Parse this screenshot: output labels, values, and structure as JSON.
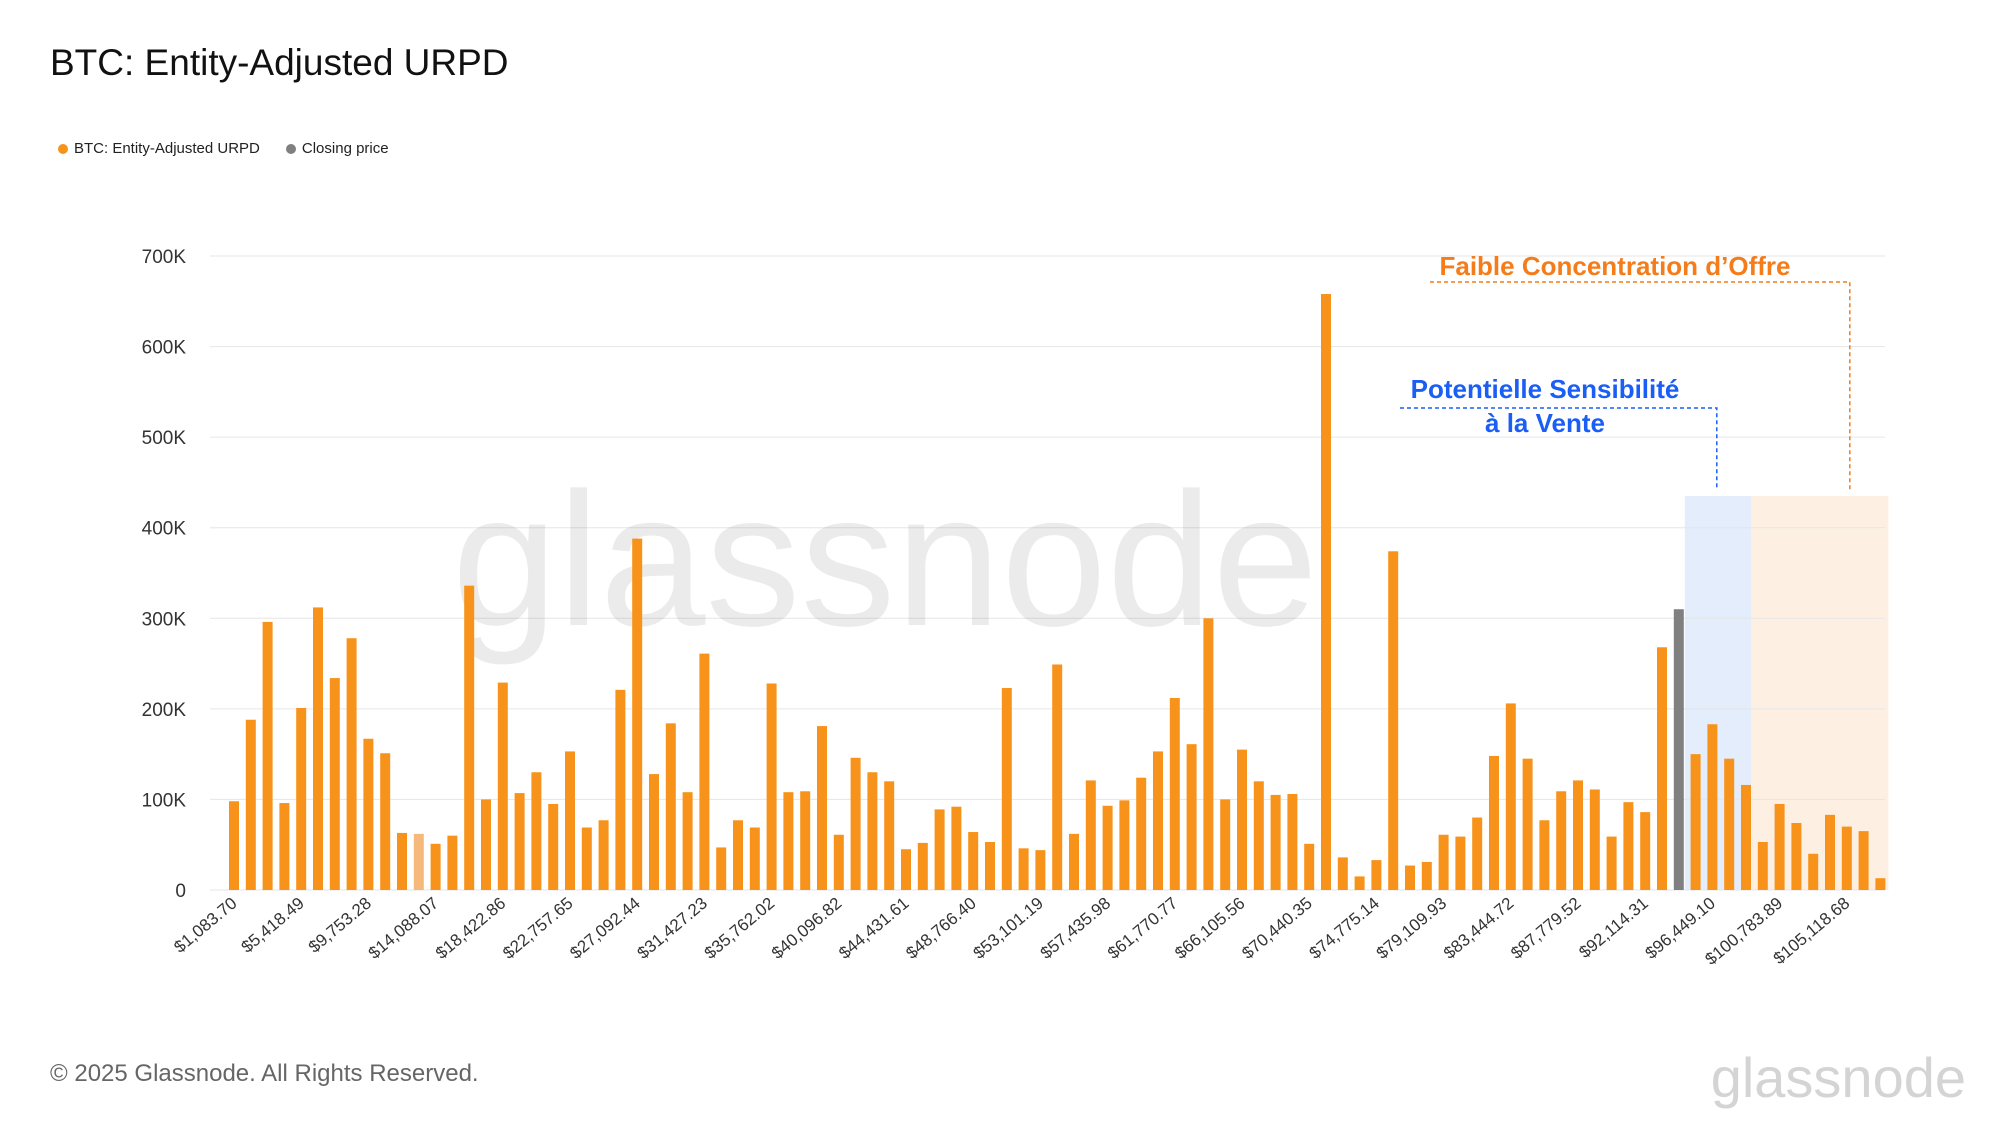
{
  "title": "BTC: Entity-Adjusted URPD",
  "legend": [
    {
      "label": "BTC: Entity-Adjusted URPD",
      "color": "#f7931a"
    },
    {
      "label": "Closing price",
      "color": "#808080"
    }
  ],
  "watermark": "glassnode",
  "footer": {
    "copyright": "© 2025 Glassnode. All Rights Reserved.",
    "logo": "glassnode"
  },
  "colors": {
    "bar": "#f7931a",
    "closing_bar": "#808080",
    "highlight_bar": "#f5b97c",
    "blue_band": "#e3edfb",
    "orange_band": "#fdf0e3",
    "blue_annotation": "#1a5ef5",
    "orange_annotation": "#f47c1a"
  },
  "chart_data": {
    "type": "bar",
    "yticks": [
      "0",
      "100K",
      "200K",
      "300K",
      "400K",
      "500K",
      "600K",
      "700K"
    ],
    "ylim": [
      0,
      700000
    ],
    "grid": true,
    "tick_labels": [
      "$1,083.70",
      "$5,418.49",
      "$9,753.28",
      "$14,088.07",
      "$18,422.86",
      "$22,757.65",
      "$27,092.44",
      "$31,427.23",
      "$35,762.02",
      "$40,096.82",
      "$44,431.61",
      "$48,766.40",
      "$53,101.19",
      "$57,435.98",
      "$61,770.77",
      "$66,105.56",
      "$70,440.35",
      "$74,775.14",
      "$79,109.93",
      "$83,444.72",
      "$87,779.52",
      "$92,114.31",
      "$96,449.10",
      "$100,783.89",
      "$105,118.68"
    ],
    "values": [
      98000,
      188000,
      296000,
      96000,
      201000,
      312000,
      234000,
      278000,
      167000,
      151000,
      63000,
      62000,
      51000,
      60000,
      336000,
      100000,
      229000,
      107000,
      130000,
      95000,
      153000,
      69000,
      77000,
      221000,
      388000,
      128000,
      184000,
      108000,
      261000,
      47000,
      77000,
      69000,
      228000,
      108000,
      109000,
      181000,
      61000,
      146000,
      130000,
      120000,
      45000,
      52000,
      89000,
      92000,
      64000,
      53000,
      223000,
      46000,
      44000,
      249000,
      62000,
      121000,
      93000,
      99000,
      124000,
      153000,
      212000,
      161000,
      300000,
      100000,
      155000,
      120000,
      105000,
      106000,
      51000,
      658000,
      36000,
      15000,
      33000,
      374000,
      27000,
      31000,
      61000,
      59000,
      80000,
      148000,
      206000,
      145000,
      77000,
      109000,
      121000,
      111000,
      59000,
      97000,
      86000,
      268000,
      310000,
      150000,
      183000,
      145000,
      116000,
      53000,
      95000,
      74000,
      40000,
      83000,
      70000,
      65000,
      13000
    ],
    "closing_price_index": 86,
    "annotations": [
      {
        "text_lines": [
          "Potentielle Sensibilité",
          "à la Vente"
        ],
        "color": "blue",
        "bar_range": [
          86,
          90
        ]
      },
      {
        "text_lines": [
          "Faible Concentration d’Offre"
        ],
        "color": "orange",
        "bar_range": [
          91,
          98
        ]
      }
    ]
  }
}
